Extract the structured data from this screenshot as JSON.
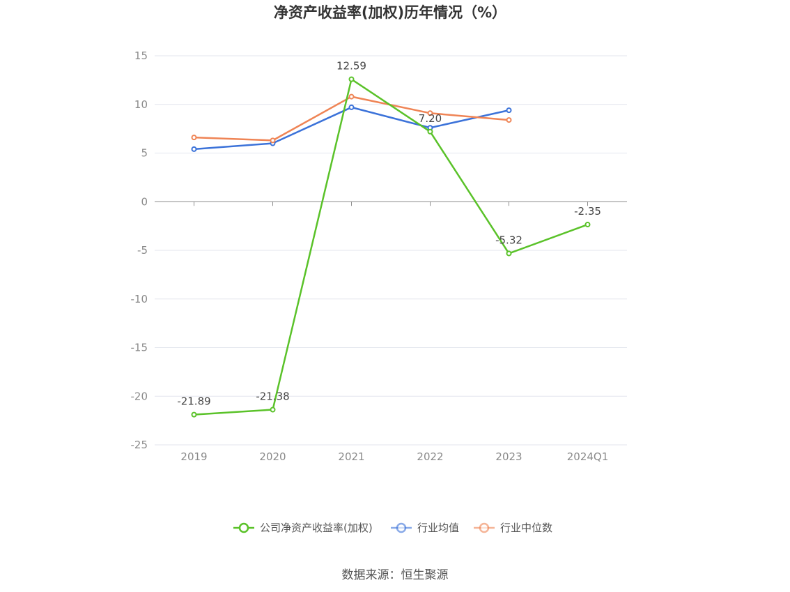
{
  "chart_data": {
    "type": "line",
    "title": "净资产收益率(加权)历年情况（%）",
    "categories": [
      "2019",
      "2020",
      "2021",
      "2022",
      "2023",
      "2024Q1"
    ],
    "ylim": [
      -25,
      15
    ],
    "yticks": [
      15,
      10,
      5,
      0,
      -5,
      -10,
      -15,
      -20,
      -25
    ],
    "grid": true,
    "legend_position": "bottom",
    "series": [
      {
        "name": "公司净资产收益率(加权)",
        "color": "#5ac229",
        "values": [
          -21.89,
          -21.38,
          12.59,
          7.2,
          -5.32,
          -2.35
        ],
        "labels": [
          "-21.89",
          "-21.38",
          "12.59",
          "7.20",
          "-5.32",
          "-2.35"
        ]
      },
      {
        "name": "行业均值",
        "color": "#3b72d9",
        "values": [
          5.4,
          6.0,
          9.7,
          7.6,
          9.4,
          null
        ]
      },
      {
        "name": "行业中位数",
        "color": "#ef8455",
        "values": [
          6.6,
          6.3,
          10.8,
          9.1,
          8.4,
          null
        ]
      }
    ],
    "source": "数据来源：恒生聚源"
  }
}
